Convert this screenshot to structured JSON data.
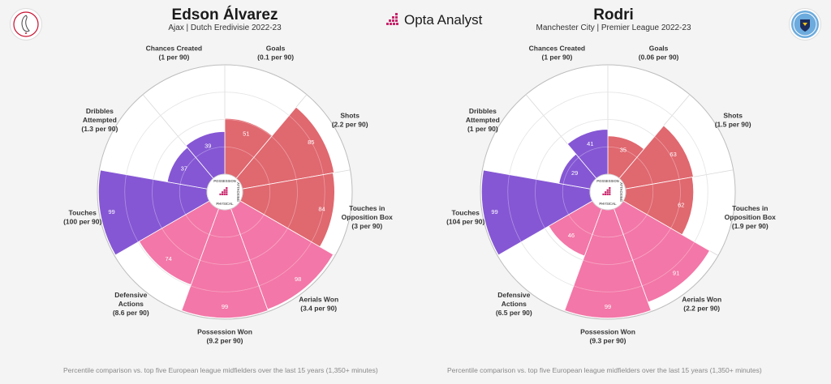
{
  "brand": {
    "name": "Opta Analyst"
  },
  "colors": {
    "attacking": "#e0686f",
    "possession": "#f377a8",
    "defending": "#8557d4",
    "ring": "#d9d9d9",
    "background": "#f4f4f4"
  },
  "players": [
    {
      "name": "Edson Álvarez",
      "subtitle": "Ajax | Dutch Eredivisie 2022-23",
      "crest": "ajax-crest-icon",
      "footer": "Percentile comparison vs. top five European league midfielders over the last 15 years (1,350+ minutes)"
    },
    {
      "name": "Rodri",
      "subtitle": "Manchester City | Premier League 2022-23",
      "crest": "manchester-city-crest-icon",
      "footer": "Percentile comparison vs. top five European league midfielders over the last 15 years (1,350+ minutes)"
    }
  ],
  "center_badge": {
    "top": "POSSESSION",
    "right": "ATTACKING",
    "bottom": "PHYSICAL"
  },
  "chart_data": [
    {
      "type": "radar",
      "title": "Edson Álvarez",
      "subtitle": "Ajax | Dutch Eredivisie 2022-23",
      "scale": [
        0,
        100
      ],
      "metrics": [
        {
          "label": [
            "Goals",
            "(0.1 per 90)"
          ],
          "percentile": 51,
          "group": "attacking"
        },
        {
          "label": [
            "Shots",
            "(2.2 per 90)"
          ],
          "percentile": 85,
          "group": "attacking"
        },
        {
          "label": [
            "Touches in",
            "Opposition Box",
            "(3 per 90)"
          ],
          "percentile": 84,
          "group": "attacking"
        },
        {
          "label": [
            "Aerials Won",
            "(3.4 per 90)"
          ],
          "percentile": 98,
          "group": "possession"
        },
        {
          "label": [
            "Possession Won",
            "(9.2 per 90)"
          ],
          "percentile": 99,
          "group": "possession"
        },
        {
          "label": [
            "Defensive",
            "Actions",
            "(8.6 per 90)"
          ],
          "percentile": 74,
          "group": "possession"
        },
        {
          "label": [
            "Touches",
            "(100 per 90)"
          ],
          "percentile": 99,
          "group": "defending"
        },
        {
          "label": [
            "Dribbles",
            "Attempted",
            "(1.3 per 90)"
          ],
          "percentile": 37,
          "group": "defending"
        },
        {
          "label": [
            "Chances Created",
            "(1 per 90)"
          ],
          "percentile": 39,
          "group": "defending"
        }
      ]
    },
    {
      "type": "radar",
      "title": "Rodri",
      "subtitle": "Manchester City | Premier League 2022-23",
      "scale": [
        0,
        100
      ],
      "metrics": [
        {
          "label": [
            "Goals",
            "(0.06 per 90)"
          ],
          "percentile": 35,
          "group": "attacking"
        },
        {
          "label": [
            "Shots",
            "(1.5 per 90)"
          ],
          "percentile": 63,
          "group": "attacking"
        },
        {
          "label": [
            "Touches in",
            "Opposition Box",
            "(1.9 per 90)"
          ],
          "percentile": 62,
          "group": "attacking"
        },
        {
          "label": [
            "Aerials Won",
            "(2.2 per 90)"
          ],
          "percentile": 91,
          "group": "possession"
        },
        {
          "label": [
            "Possession Won",
            "(9.3 per 90)"
          ],
          "percentile": 99,
          "group": "possession"
        },
        {
          "label": [
            "Defensive",
            "Actions",
            "(6.5 per 90)"
          ],
          "percentile": 46,
          "group": "possession"
        },
        {
          "label": [
            "Touches",
            "(104 per 90)"
          ],
          "percentile": 99,
          "group": "defending"
        },
        {
          "label": [
            "Dribbles",
            "Attempted",
            "(1 per 90)"
          ],
          "percentile": 29,
          "group": "defending"
        },
        {
          "label": [
            "Chances Created",
            "(1 per 90)"
          ],
          "percentile": 41,
          "group": "defending"
        }
      ]
    }
  ]
}
